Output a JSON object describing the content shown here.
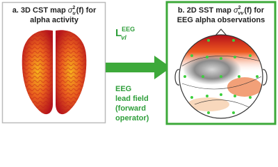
{
  "panel_a": {
    "title_prefix": "a. 3D CST map ",
    "symbol": "σ",
    "superscript": "2",
    "subscript": "u",
    "title_suffix": "(f) for",
    "title_line2": "alpha activity"
  },
  "operator": {
    "symbol": "L",
    "superscript": "EEG",
    "subscript": "vl"
  },
  "caption": [
    "EEG",
    "lead field",
    "(forward",
    "operator)"
  ],
  "panel_b": {
    "title_prefix": "b. 2D SST map ",
    "symbol": "σ",
    "superscript": "2",
    "subscript": "vv",
    "title_suffix": "(f) for",
    "title_line2": "EEG alpha observations"
  }
}
